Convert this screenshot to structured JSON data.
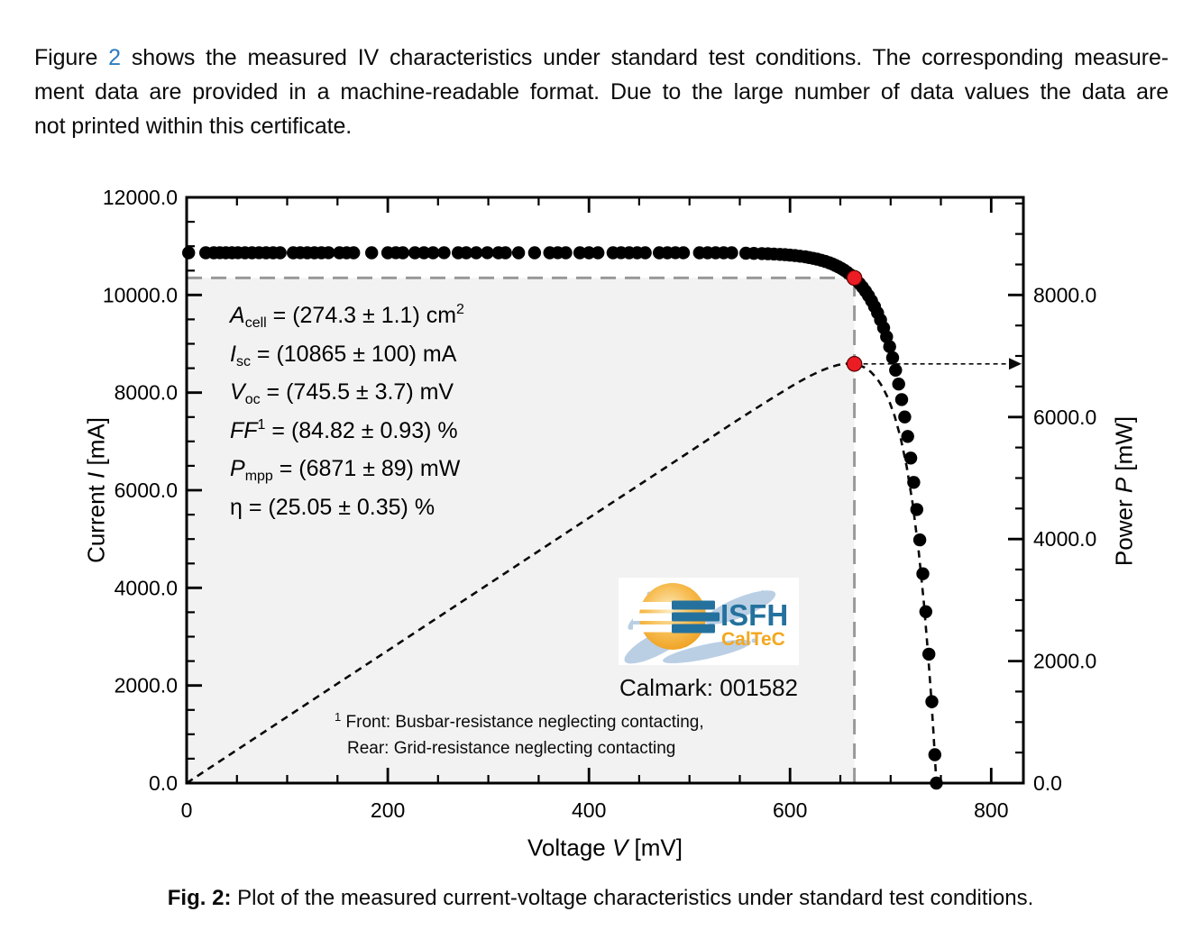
{
  "page": {
    "paragraph": {
      "pre": "Figure",
      "fig_ref": "2",
      "line1_rest": "shows the measured IV characteristics under standard test conditions. The corresponding measure-",
      "line2": "ment data are provided in a machine-readable format. Due to the large number of data values the data are",
      "line3": "not printed within this certificate."
    },
    "caption": {
      "label": "Fig. 2:",
      "text": "Plot of the measured current-voltage characteristics under standard test conditions."
    }
  },
  "chart_data": {
    "type": "scatter+line",
    "title": "",
    "x_axis": {
      "label_pre": "Voltage",
      "label_var": "V",
      "label_post": "[mV]",
      "lim": [
        0,
        832
      ],
      "major_ticks": [
        0,
        200,
        400,
        600,
        800
      ],
      "tick_labels": [
        "0",
        "200",
        "400",
        "600",
        "800"
      ],
      "minor_step": 50,
      "grid": false
    },
    "y_left": {
      "label_pre": "Current",
      "label_var": "I",
      "label_post": "[mA]",
      "lim": [
        0,
        12000
      ],
      "major_ticks": [
        0,
        2000,
        4000,
        6000,
        8000,
        10000,
        12000
      ],
      "tick_labels": [
        "0.0",
        "2000.0",
        "4000.0",
        "6000.0",
        "8000.0",
        "10000.0",
        "12000.0"
      ],
      "minor_step": 500
    },
    "y_right": {
      "label_pre": "Power",
      "label_var": "P",
      "label_post": "[mW]",
      "lim": [
        0,
        9600
      ],
      "major_ticks": [
        0,
        2000,
        4000,
        6000,
        8000
      ],
      "tick_labels": [
        "0.0",
        "2000.0",
        "4000.0",
        "6000.0",
        "8000.0"
      ],
      "minor_step": 500
    },
    "iv_points": [
      [
        2,
        10865
      ],
      [
        19,
        10865
      ],
      [
        27,
        10865
      ],
      [
        33,
        10866
      ],
      [
        39,
        10864
      ],
      [
        45,
        10865
      ],
      [
        51,
        10866
      ],
      [
        58,
        10864
      ],
      [
        65,
        10865
      ],
      [
        72,
        10866
      ],
      [
        79,
        10864
      ],
      [
        86,
        10865
      ],
      [
        93,
        10865
      ],
      [
        106,
        10864
      ],
      [
        113,
        10866
      ],
      [
        120,
        10865
      ],
      [
        127,
        10864
      ],
      [
        134,
        10865
      ],
      [
        141,
        10866
      ],
      [
        152,
        10864
      ],
      [
        159,
        10865
      ],
      [
        166,
        10865
      ],
      [
        184,
        10864
      ],
      [
        200,
        10865
      ],
      [
        208,
        10866
      ],
      [
        215,
        10864
      ],
      [
        227,
        10865
      ],
      [
        236,
        10865
      ],
      [
        245,
        10864
      ],
      [
        256,
        10866
      ],
      [
        270,
        10865
      ],
      [
        278,
        10864
      ],
      [
        288,
        10865
      ],
      [
        299,
        10866
      ],
      [
        310,
        10864
      ],
      [
        317,
        10865
      ],
      [
        330,
        10865
      ],
      [
        346,
        10864
      ],
      [
        361,
        10865
      ],
      [
        369,
        10866
      ],
      [
        377,
        10864
      ],
      [
        391,
        10865
      ],
      [
        400,
        10865
      ],
      [
        409,
        10864
      ],
      [
        424,
        10865
      ],
      [
        432,
        10866
      ],
      [
        440,
        10864
      ],
      [
        448,
        10865
      ],
      [
        456,
        10865
      ],
      [
        470,
        10864
      ],
      [
        478,
        10865
      ],
      [
        486,
        10866
      ],
      [
        494,
        10864
      ],
      [
        510,
        10865
      ],
      [
        518,
        10864
      ],
      [
        526,
        10865
      ],
      [
        534,
        10865
      ],
      [
        542,
        10864
      ],
      [
        556,
        10856
      ],
      [
        564,
        10852
      ],
      [
        572,
        10848
      ],
      [
        578,
        10844
      ],
      [
        584,
        10838
      ],
      [
        590,
        10832
      ],
      [
        595,
        10825
      ],
      [
        600,
        10817
      ],
      [
        605,
        10807
      ],
      [
        610,
        10795
      ],
      [
        615,
        10781
      ],
      [
        619,
        10767
      ],
      [
        623,
        10751
      ],
      [
        627,
        10733
      ],
      [
        631,
        10712
      ],
      [
        635,
        10688
      ],
      [
        639,
        10659
      ],
      [
        642,
        10635
      ],
      [
        645,
        10607
      ],
      [
        648,
        10577
      ],
      [
        651,
        10543
      ],
      [
        654,
        10505
      ],
      [
        657,
        10462
      ],
      [
        660,
        10415
      ],
      [
        663,
        10362
      ],
      [
        666,
        10302
      ],
      [
        669,
        10236
      ],
      [
        672,
        10161
      ],
      [
        675,
        10078
      ],
      [
        678,
        9985
      ],
      [
        681,
        9881
      ],
      [
        684,
        9764
      ],
      [
        687,
        9634
      ],
      [
        690,
        9489
      ],
      [
        693,
        9326
      ],
      [
        696,
        9144
      ],
      [
        699,
        8941
      ],
      [
        702,
        8713
      ],
      [
        705,
        8459
      ],
      [
        708,
        8175
      ],
      [
        711,
        7857
      ],
      [
        714,
        7501
      ],
      [
        717,
        7103
      ],
      [
        720,
        6659
      ],
      [
        723,
        6161
      ],
      [
        726,
        5605
      ],
      [
        729,
        4983
      ],
      [
        732,
        4288
      ],
      [
        735,
        3511
      ],
      [
        738,
        2641
      ],
      [
        741,
        1669
      ],
      [
        744,
        582
      ],
      [
        745.5,
        0
      ]
    ],
    "power_points": [
      [
        0,
        0
      ],
      [
        50,
        543
      ],
      [
        100,
        1087
      ],
      [
        150,
        1630
      ],
      [
        200,
        2173
      ],
      [
        250,
        2716
      ],
      [
        300,
        3260
      ],
      [
        350,
        3803
      ],
      [
        400,
        4346
      ],
      [
        450,
        4887
      ],
      [
        500,
        5429
      ],
      [
        540,
        5866
      ],
      [
        560,
        6077
      ],
      [
        580,
        6286
      ],
      [
        600,
        6490
      ],
      [
        610,
        6585
      ],
      [
        620,
        6674
      ],
      [
        630,
        6752
      ],
      [
        640,
        6817
      ],
      [
        648,
        6854
      ],
      [
        656,
        6873
      ],
      [
        662,
        6872
      ],
      [
        668,
        6853
      ],
      [
        674,
        6812
      ],
      [
        680,
        6744
      ],
      [
        686,
        6640
      ],
      [
        692,
        6493
      ],
      [
        698,
        6290
      ],
      [
        704,
        6017
      ],
      [
        710,
        5657
      ],
      [
        716,
        5185
      ],
      [
        722,
        4573
      ],
      [
        728,
        3786
      ],
      [
        733,
        2962
      ],
      [
        737,
        2170
      ],
      [
        740,
        1487
      ],
      [
        742.5,
        847
      ],
      [
        744.5,
        290
      ],
      [
        745.5,
        0
      ]
    ],
    "mpp": {
      "v": 664,
      "i": 10350,
      "p": 6871
    },
    "annotations": [
      [
        {
          "t": "A",
          "s": "i"
        },
        {
          "t": "cell",
          "s": "sub"
        },
        {
          "t": " = (274.3 ± 1.1) cm",
          "s": "n"
        },
        {
          "t": "2",
          "s": "sup"
        }
      ],
      [
        {
          "t": "I",
          "s": "i"
        },
        {
          "t": "sc",
          "s": "sub"
        },
        {
          "t": " = (10865 ± 100) mA",
          "s": "n"
        }
      ],
      [
        {
          "t": "V",
          "s": "i"
        },
        {
          "t": "oc",
          "s": "sub"
        },
        {
          "t": " = (745.5 ± 3.7) mV",
          "s": "n"
        }
      ],
      [
        {
          "t": "FF",
          "s": "i"
        },
        {
          "t": "1",
          "s": "sup"
        },
        {
          "t": " = (84.82 ± 0.93) %",
          "s": "n"
        }
      ],
      [
        {
          "t": "P",
          "s": "i"
        },
        {
          "t": "mpp",
          "s": "sub"
        },
        {
          "t": " = (6871 ± 89) mW",
          "s": "n"
        }
      ],
      [
        {
          "t": "η = (25.05 ± 0.35) %",
          "s": "n"
        }
      ]
    ],
    "calmark": "Calmark: 001582",
    "footnote": {
      "sup": "1",
      "line1": " Front: Busbar-resistance neglecting contacting,",
      "line2": "Rear: Grid-resistance neglecting contacting"
    },
    "logo": {
      "line1": "ISFH",
      "line2": "CalTeC"
    },
    "legend": "none",
    "colors": {
      "dot": "#000000",
      "red_marker": "#ec1c24",
      "dashed_gray": "#999999",
      "fill_region": "#f2f2f2",
      "link_blue": "#2b7cbf",
      "logo_teal": "#24719e",
      "logo_orange": "#f4a71d",
      "logo_blue_brush": "#a3bfdc"
    }
  }
}
